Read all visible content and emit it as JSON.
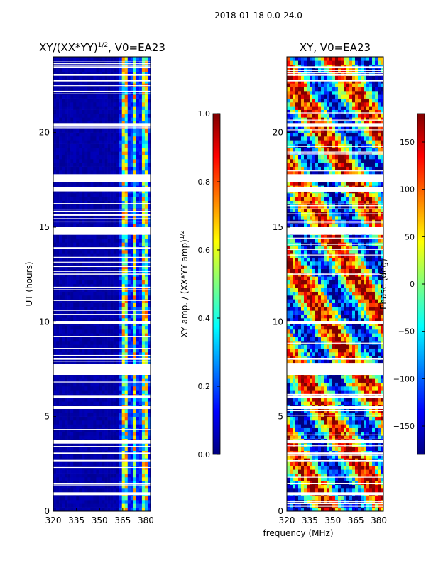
{
  "figure": {
    "suptitle": "2018-01-18 0.0-24.0",
    "shared_xlabel": "frequency (MHz)"
  },
  "colormap": [
    "#00007f",
    "#0000ff",
    "#007fff",
    "#00ffff",
    "#7fff7f",
    "#ffff00",
    "#ff7f00",
    "#ff0000",
    "#7f0000"
  ],
  "chart_data": [
    {
      "type": "heatmap",
      "title": "XY/(XX*YY)",
      "title_exponent": "1/2",
      "title_suffix": ", V0=EA23",
      "xlabel": "",
      "ylabel": "UT (hours)",
      "xlim": [
        320,
        383
      ],
      "ylim": [
        0,
        24
      ],
      "xticks": [
        320,
        335,
        350,
        365,
        380
      ],
      "yticks": [
        0,
        5,
        10,
        15,
        20
      ],
      "bright_channels_mhz": [
        [
          364,
          368
        ],
        [
          372,
          374
        ],
        [
          377,
          381
        ]
      ],
      "colorbar": {
        "label": "XY amp. / (XX*YY amp)",
        "label_exponent": "1/2",
        "range": [
          0.0,
          1.0
        ],
        "ticks": [
          "0.0",
          "0.2",
          "0.4",
          "0.6",
          "0.8",
          "1.0"
        ]
      }
    },
    {
      "type": "heatmap",
      "title": "XY, V0=EA23",
      "xlabel": "",
      "ylabel": "",
      "xlim": [
        320,
        383
      ],
      "ylim": [
        0,
        24
      ],
      "xticks": [
        320,
        335,
        350,
        365,
        380
      ],
      "yticks": [
        0,
        5,
        10,
        15,
        20
      ],
      "colorbar": {
        "label": "Phase (deg)",
        "range": [
          -180,
          180
        ],
        "ticks": [
          "150",
          "100",
          "50",
          "0",
          "−50",
          "−100",
          "−150"
        ]
      }
    }
  ]
}
